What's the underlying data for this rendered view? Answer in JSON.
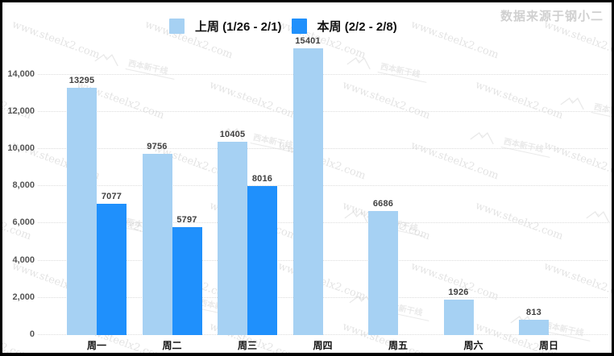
{
  "source_label": "数据来源于钢小二",
  "watermark": {
    "url_text": "www.steelx2.com",
    "brand_text": "西本新干线"
  },
  "chart_data": {
    "type": "bar",
    "title": "",
    "xlabel": "",
    "ylabel": "",
    "categories": [
      "周一",
      "周二",
      "周三",
      "周四",
      "周五",
      "周六",
      "周日"
    ],
    "series": [
      {
        "name": "上周 (1/26 - 2/1)",
        "color": "#a6d1f3",
        "values": [
          13295,
          9756,
          10405,
          15401,
          6686,
          1926,
          813
        ]
      },
      {
        "name": "本周 (2/2 - 2/8)",
        "color": "#1f90fc",
        "values": [
          7077,
          5797,
          8016,
          null,
          null,
          null,
          null
        ]
      }
    ],
    "ylim": [
      0,
      15500
    ],
    "yticks": [
      0,
      2000,
      4000,
      6000,
      8000,
      10000,
      12000,
      14000
    ],
    "grid": "horizontal-dotted",
    "legend_position": "top-center",
    "value_labels": true
  }
}
